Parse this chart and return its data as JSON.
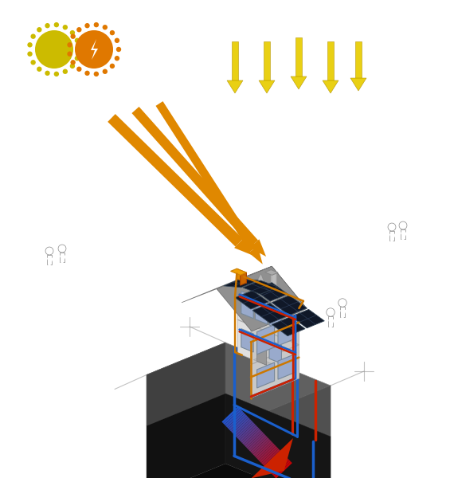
{
  "bg_color": "#ffffff",
  "blue": "#1a5fcc",
  "red": "#cc2200",
  "orange": "#cc7700",
  "yellow": "#e8cc00",
  "orange_arrow": "#e08800",
  "dark_ground": "#1a1a1a",
  "mid_ground": "#2a2a2a",
  "top_ground": "#606060",
  "house_front": "#e0e0e0",
  "house_side": "#c8c8c8",
  "house_shadow": "#b0b0b0",
  "roof_dark": "#888888",
  "roof_mid": "#999999",
  "solar_dark": "#101828",
  "window_color": "#99aacc",
  "chimney": "#cccccc",
  "white": "#ffffff",
  "sun_yellow": "#ccbb00",
  "sun_orange": "#e07800",
  "gray_line": "#999999"
}
